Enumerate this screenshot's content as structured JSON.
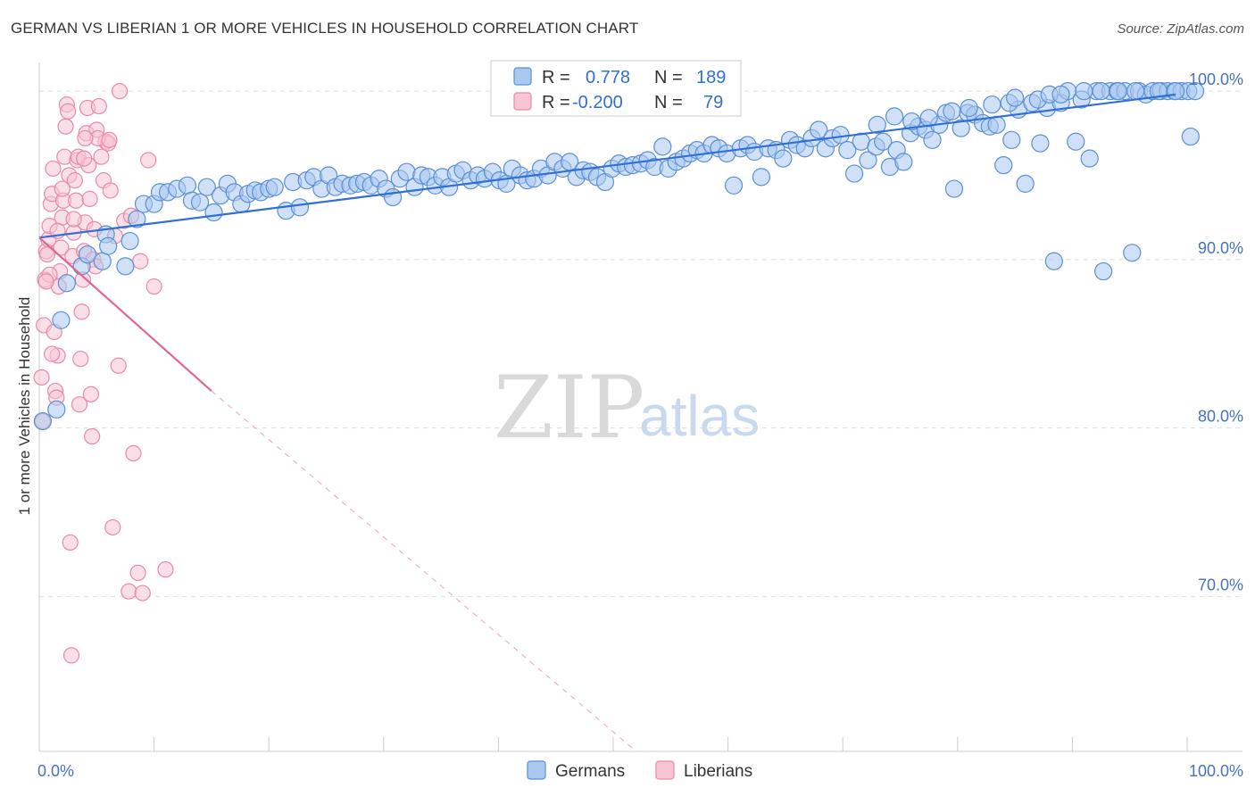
{
  "title": "GERMAN VS LIBERIAN 1 OR MORE VEHICLES IN HOUSEHOLD CORRELATION CHART",
  "source": "Source: ZipAtlas.com",
  "watermark": {
    "zip": "ZIP",
    "atlas": "atlas"
  },
  "colors": {
    "german_fill": "#aac8f0",
    "german_stroke": "#5b8fd6",
    "german_line": "#2f6fd6",
    "liberian_fill": "#f7c4d4",
    "liberian_stroke": "#e88aa8",
    "liberian_line": "#e06890",
    "grid": "#dddddd",
    "tick_text": "#4472c4"
  },
  "legend": {
    "r_label": "R =",
    "n_label": "N =",
    "german": {
      "r": "0.778",
      "n": "189"
    },
    "liberian": {
      "r": "-0.200",
      "n": "79"
    }
  },
  "chart_data": {
    "type": "scatter",
    "title": "GERMAN VS LIBERIAN 1 OR MORE VEHICLES IN HOUSEHOLD CORRELATION CHART",
    "xlabel": "",
    "ylabel": "1 or more Vehicles in Household",
    "xlim": [
      0,
      100
    ],
    "ylim": [
      60.8,
      101.7
    ],
    "x_ticks_labels": [
      "0.0%",
      "100.0%"
    ],
    "y_ticks": [
      70,
      80,
      90,
      100
    ],
    "y_ticks_labels": [
      "70.0%",
      "80.0%",
      "90.0%",
      "100.0%"
    ],
    "grid": "horizontal dashed",
    "legend_position": "top-center",
    "series": [
      {
        "name": "Germans",
        "r": 0.778,
        "n": 189,
        "trend": {
          "x": [
            0,
            99
          ],
          "y": [
            91.3,
            99.8
          ]
        },
        "points": [
          [
            0.3,
            80.4
          ],
          [
            1.5,
            81.1
          ],
          [
            1.9,
            86.4
          ],
          [
            2.4,
            88.6
          ],
          [
            3.7,
            89.6
          ],
          [
            4.2,
            90.3
          ],
          [
            5.8,
            91.5
          ],
          [
            5.5,
            89.9
          ],
          [
            6.0,
            90.8
          ],
          [
            7.5,
            89.6
          ],
          [
            7.9,
            91.1
          ],
          [
            8.5,
            92.4
          ],
          [
            9.1,
            93.3
          ],
          [
            10.0,
            93.3
          ],
          [
            10.5,
            94.0
          ],
          [
            11.2,
            94.0
          ],
          [
            12.0,
            94.2
          ],
          [
            12.9,
            94.4
          ],
          [
            13.3,
            93.5
          ],
          [
            14.0,
            93.4
          ],
          [
            14.6,
            94.3
          ],
          [
            15.2,
            92.8
          ],
          [
            15.8,
            93.8
          ],
          [
            16.4,
            94.5
          ],
          [
            17.0,
            94.0
          ],
          [
            17.6,
            93.3
          ],
          [
            18.2,
            93.9
          ],
          [
            18.8,
            94.1
          ],
          [
            19.3,
            94.0
          ],
          [
            20.0,
            94.2
          ],
          [
            20.5,
            94.3
          ],
          [
            21.5,
            92.9
          ],
          [
            22.1,
            94.6
          ],
          [
            22.7,
            93.1
          ],
          [
            23.3,
            94.7
          ],
          [
            23.9,
            94.9
          ],
          [
            24.6,
            94.2
          ],
          [
            25.2,
            95.0
          ],
          [
            25.8,
            94.3
          ],
          [
            26.4,
            94.5
          ],
          [
            27.1,
            94.4
          ],
          [
            27.7,
            94.5
          ],
          [
            28.3,
            94.6
          ],
          [
            28.9,
            94.4
          ],
          [
            29.6,
            94.8
          ],
          [
            30.2,
            94.2
          ],
          [
            30.8,
            93.7
          ],
          [
            31.4,
            94.8
          ],
          [
            32.0,
            95.2
          ],
          [
            32.7,
            94.3
          ],
          [
            33.3,
            95.0
          ],
          [
            33.9,
            94.9
          ],
          [
            34.5,
            94.4
          ],
          [
            35.1,
            94.9
          ],
          [
            35.7,
            94.3
          ],
          [
            36.3,
            95.1
          ],
          [
            36.9,
            95.3
          ],
          [
            37.6,
            94.7
          ],
          [
            38.2,
            95.0
          ],
          [
            38.8,
            94.8
          ],
          [
            39.5,
            95.2
          ],
          [
            40.1,
            94.7
          ],
          [
            40.7,
            94.5
          ],
          [
            41.2,
            95.4
          ],
          [
            41.9,
            95.0
          ],
          [
            42.5,
            94.7
          ],
          [
            43.1,
            94.8
          ],
          [
            43.7,
            95.4
          ],
          [
            44.3,
            95.0
          ],
          [
            44.9,
            95.8
          ],
          [
            45.6,
            95.4
          ],
          [
            46.2,
            95.8
          ],
          [
            46.8,
            94.9
          ],
          [
            47.4,
            95.3
          ],
          [
            48.0,
            95.2
          ],
          [
            48.6,
            94.9
          ],
          [
            49.3,
            94.6
          ],
          [
            49.9,
            95.4
          ],
          [
            50.5,
            95.7
          ],
          [
            51.1,
            95.5
          ],
          [
            51.7,
            95.6
          ],
          [
            52.4,
            95.7
          ],
          [
            53.0,
            95.9
          ],
          [
            53.6,
            95.5
          ],
          [
            54.3,
            96.7
          ],
          [
            54.8,
            95.4
          ],
          [
            55.5,
            95.8
          ],
          [
            56.1,
            96.0
          ],
          [
            56.7,
            96.3
          ],
          [
            57.3,
            96.5
          ],
          [
            57.9,
            96.3
          ],
          [
            58.6,
            96.8
          ],
          [
            59.2,
            96.6
          ],
          [
            59.9,
            96.3
          ],
          [
            60.5,
            94.4
          ],
          [
            61.1,
            96.6
          ],
          [
            61.7,
            96.8
          ],
          [
            62.3,
            96.4
          ],
          [
            62.9,
            94.9
          ],
          [
            63.5,
            96.6
          ],
          [
            64.2,
            96.5
          ],
          [
            64.8,
            96.0
          ],
          [
            65.4,
            97.1
          ],
          [
            66.0,
            96.8
          ],
          [
            66.7,
            96.6
          ],
          [
            67.3,
            97.2
          ],
          [
            67.9,
            97.7
          ],
          [
            68.5,
            96.6
          ],
          [
            69.1,
            97.2
          ],
          [
            69.8,
            97.4
          ],
          [
            70.4,
            96.5
          ],
          [
            71.0,
            95.1
          ],
          [
            71.6,
            97.0
          ],
          [
            72.2,
            95.9
          ],
          [
            72.9,
            96.7
          ],
          [
            73.5,
            97.0
          ],
          [
            74.1,
            95.5
          ],
          [
            74.7,
            96.5
          ],
          [
            75.3,
            95.8
          ],
          [
            75.9,
            97.5
          ],
          [
            76.6,
            97.9
          ],
          [
            77.2,
            97.7
          ],
          [
            77.8,
            97.1
          ],
          [
            78.4,
            98.0
          ],
          [
            79.0,
            98.7
          ],
          [
            79.7,
            94.2
          ],
          [
            80.3,
            97.8
          ],
          [
            80.9,
            98.7
          ],
          [
            81.5,
            98.6
          ],
          [
            82.2,
            98.1
          ],
          [
            82.8,
            97.9
          ],
          [
            83.4,
            98.0
          ],
          [
            84.0,
            95.6
          ],
          [
            84.7,
            97.1
          ],
          [
            85.3,
            98.9
          ],
          [
            85.9,
            94.5
          ],
          [
            86.5,
            99.3
          ],
          [
            87.2,
            96.9
          ],
          [
            87.8,
            99.0
          ],
          [
            88.4,
            89.9
          ],
          [
            89.0,
            99.3
          ],
          [
            89.6,
            100.0
          ],
          [
            90.3,
            97.0
          ],
          [
            90.8,
            99.5
          ],
          [
            91.5,
            96.0
          ],
          [
            92.1,
            100.0
          ],
          [
            92.7,
            89.3
          ],
          [
            93.3,
            100.0
          ],
          [
            93.9,
            100.0
          ],
          [
            94.6,
            100.0
          ],
          [
            95.2,
            90.4
          ],
          [
            95.8,
            100.0
          ],
          [
            96.4,
            99.8
          ],
          [
            97.0,
            100.0
          ],
          [
            97.7,
            100.0
          ],
          [
            98.3,
            100.0
          ],
          [
            98.9,
            100.0
          ],
          [
            99.5,
            100.0
          ],
          [
            100.1,
            100.0
          ],
          [
            100.7,
            100.0
          ],
          [
            73.0,
            98.0
          ],
          [
            74.5,
            98.5
          ],
          [
            76.0,
            98.2
          ],
          [
            77.5,
            98.4
          ],
          [
            79.5,
            98.8
          ],
          [
            81.0,
            99.0
          ],
          [
            83.0,
            99.2
          ],
          [
            84.5,
            99.3
          ],
          [
            85.0,
            99.6
          ],
          [
            87.0,
            99.5
          ],
          [
            88.0,
            99.8
          ],
          [
            89.0,
            99.8
          ],
          [
            91.0,
            100.0
          ],
          [
            92.5,
            100.0
          ],
          [
            94.0,
            100.0
          ],
          [
            95.5,
            100.0
          ],
          [
            97.5,
            100.0
          ],
          [
            99.0,
            100.0
          ],
          [
            100.3,
            97.3
          ]
        ]
      },
      {
        "name": "Liberians",
        "r": -0.2,
        "n": 79,
        "trend": {
          "x": [
            0,
            15
          ],
          "y": [
            91.3,
            82.2
          ]
        },
        "trend_extension": {
          "x": [
            15,
            52
          ],
          "y": [
            82.2,
            60.8
          ]
        },
        "points": [
          [
            0.2,
            83.0
          ],
          [
            0.3,
            80.4
          ],
          [
            0.4,
            86.1
          ],
          [
            0.5,
            88.8
          ],
          [
            0.6,
            90.5
          ],
          [
            0.7,
            90.3
          ],
          [
            0.8,
            91.2
          ],
          [
            0.9,
            92.0
          ],
          [
            1.0,
            93.3
          ],
          [
            1.1,
            93.9
          ],
          [
            1.2,
            95.4
          ],
          [
            1.3,
            85.7
          ],
          [
            1.4,
            82.2
          ],
          [
            1.5,
            81.8
          ],
          [
            1.6,
            84.3
          ],
          [
            1.7,
            88.4
          ],
          [
            1.8,
            89.3
          ],
          [
            1.9,
            90.7
          ],
          [
            2.0,
            92.5
          ],
          [
            2.1,
            93.5
          ],
          [
            2.2,
            96.1
          ],
          [
            2.3,
            97.9
          ],
          [
            2.4,
            99.2
          ],
          [
            2.5,
            98.8
          ],
          [
            2.6,
            95.0
          ],
          [
            2.7,
            73.2
          ],
          [
            2.8,
            66.5
          ],
          [
            2.9,
            90.2
          ],
          [
            3.0,
            91.6
          ],
          [
            3.1,
            94.7
          ],
          [
            3.2,
            93.5
          ],
          [
            3.3,
            95.9
          ],
          [
            3.4,
            96.1
          ],
          [
            3.5,
            81.4
          ],
          [
            3.6,
            84.1
          ],
          [
            3.7,
            86.9
          ],
          [
            3.8,
            88.8
          ],
          [
            3.9,
            90.5
          ],
          [
            4.0,
            92.2
          ],
          [
            4.1,
            97.5
          ],
          [
            4.2,
            99.0
          ],
          [
            4.3,
            95.6
          ],
          [
            4.4,
            93.6
          ],
          [
            4.5,
            82.0
          ],
          [
            4.6,
            79.5
          ],
          [
            4.7,
            90.0
          ],
          [
            4.8,
            91.8
          ],
          [
            4.9,
            89.6
          ],
          [
            5.0,
            97.7
          ],
          [
            5.2,
            99.1
          ],
          [
            5.4,
            96.1
          ],
          [
            5.6,
            94.7
          ],
          [
            5.8,
            97.0
          ],
          [
            6.0,
            96.9
          ],
          [
            6.2,
            94.1
          ],
          [
            6.4,
            74.1
          ],
          [
            6.6,
            91.4
          ],
          [
            7.0,
            100.0
          ],
          [
            7.4,
            92.3
          ],
          [
            7.8,
            70.3
          ],
          [
            8.2,
            78.5
          ],
          [
            8.6,
            71.4
          ],
          [
            9.0,
            70.2
          ],
          [
            9.5,
            95.9
          ],
          [
            10.0,
            88.4
          ],
          [
            11.0,
            71.6
          ],
          [
            6.9,
            83.7
          ],
          [
            5.1,
            97.2
          ],
          [
            3.9,
            96.0
          ],
          [
            1.1,
            84.4
          ],
          [
            0.9,
            89.1
          ],
          [
            1.6,
            91.7
          ],
          [
            2.0,
            94.2
          ],
          [
            3.0,
            92.4
          ],
          [
            4.0,
            97.2
          ],
          [
            6.1,
            97.1
          ],
          [
            8.0,
            92.6
          ],
          [
            8.8,
            89.9
          ],
          [
            0.6,
            88.7
          ]
        ]
      }
    ]
  }
}
